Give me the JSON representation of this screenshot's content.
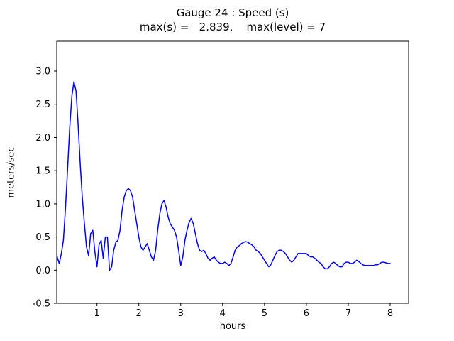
{
  "chart_data": {
    "type": "line",
    "title": "Gauge 24 : Speed (s)",
    "subtitle": "max(s) =   2.839,    max(level) = 7",
    "max_s": 2.839,
    "max_level": 7,
    "xlabel": "hours",
    "ylabel": "meters/sec",
    "xlim": [
      0.04,
      8.44
    ],
    "ylim": [
      -0.5,
      3.45
    ],
    "xticks": [
      1,
      2,
      3,
      4,
      5,
      6,
      7,
      8
    ],
    "yticks": [
      -0.5,
      0.0,
      0.5,
      1.0,
      1.5,
      2.0,
      2.5,
      3.0
    ],
    "grid": false,
    "legend": false,
    "line_color": "#0000ff",
    "line_width": 1.5,
    "series": [
      {
        "name": "Speed (s)",
        "x": [
          0.05,
          0.1,
          0.15,
          0.2,
          0.25,
          0.3,
          0.35,
          0.4,
          0.45,
          0.5,
          0.55,
          0.6,
          0.65,
          0.7,
          0.75,
          0.8,
          0.85,
          0.9,
          0.95,
          1.0,
          1.05,
          1.1,
          1.15,
          1.2,
          1.25,
          1.3,
          1.35,
          1.4,
          1.45,
          1.5,
          1.55,
          1.6,
          1.65,
          1.7,
          1.75,
          1.8,
          1.85,
          1.9,
          1.95,
          2.0,
          2.05,
          2.1,
          2.15,
          2.2,
          2.25,
          2.3,
          2.35,
          2.4,
          2.45,
          2.5,
          2.55,
          2.6,
          2.65,
          2.7,
          2.75,
          2.8,
          2.85,
          2.9,
          2.95,
          3.0,
          3.05,
          3.1,
          3.15,
          3.2,
          3.25,
          3.3,
          3.35,
          3.4,
          3.45,
          3.5,
          3.55,
          3.6,
          3.65,
          3.7,
          3.75,
          3.8,
          3.85,
          3.9,
          3.95,
          4.0,
          4.05,
          4.1,
          4.15,
          4.2,
          4.25,
          4.3,
          4.35,
          4.4,
          4.45,
          4.5,
          4.55,
          4.6,
          4.65,
          4.7,
          4.75,
          4.8,
          4.85,
          4.9,
          4.95,
          5.0,
          5.05,
          5.1,
          5.15,
          5.2,
          5.25,
          5.3,
          5.35,
          5.4,
          5.45,
          5.5,
          5.55,
          5.6,
          5.65,
          5.7,
          5.75,
          5.8,
          5.85,
          5.9,
          5.95,
          6.0,
          6.05,
          6.1,
          6.15,
          6.2,
          6.25,
          6.3,
          6.35,
          6.4,
          6.45,
          6.5,
          6.55,
          6.6,
          6.65,
          6.7,
          6.75,
          6.8,
          6.85,
          6.9,
          6.95,
          7.0,
          7.05,
          7.1,
          7.15,
          7.2,
          7.25,
          7.3,
          7.35,
          7.4,
          7.45,
          7.5,
          7.55,
          7.6,
          7.65,
          7.7,
          7.75,
          7.8,
          7.85,
          7.9,
          7.95,
          8.0
        ],
        "y": [
          0.2,
          0.1,
          0.25,
          0.45,
          0.95,
          1.55,
          2.15,
          2.62,
          2.84,
          2.7,
          2.2,
          1.6,
          1.1,
          0.7,
          0.35,
          0.22,
          0.55,
          0.6,
          0.28,
          0.05,
          0.38,
          0.45,
          0.18,
          0.5,
          0.5,
          0.0,
          0.05,
          0.3,
          0.42,
          0.45,
          0.6,
          0.9,
          1.1,
          1.2,
          1.23,
          1.2,
          1.1,
          0.9,
          0.7,
          0.5,
          0.35,
          0.3,
          0.35,
          0.4,
          0.3,
          0.2,
          0.15,
          0.3,
          0.6,
          0.85,
          1.0,
          1.05,
          0.95,
          0.8,
          0.7,
          0.65,
          0.6,
          0.5,
          0.3,
          0.07,
          0.2,
          0.45,
          0.6,
          0.72,
          0.78,
          0.7,
          0.55,
          0.4,
          0.3,
          0.28,
          0.3,
          0.25,
          0.18,
          0.15,
          0.18,
          0.2,
          0.15,
          0.12,
          0.1,
          0.1,
          0.12,
          0.1,
          0.07,
          0.1,
          0.2,
          0.3,
          0.35,
          0.37,
          0.4,
          0.42,
          0.43,
          0.42,
          0.4,
          0.38,
          0.35,
          0.3,
          0.28,
          0.25,
          0.2,
          0.15,
          0.1,
          0.05,
          0.08,
          0.15,
          0.22,
          0.28,
          0.3,
          0.3,
          0.28,
          0.25,
          0.2,
          0.15,
          0.12,
          0.15,
          0.2,
          0.25,
          0.25,
          0.25,
          0.25,
          0.25,
          0.22,
          0.2,
          0.2,
          0.18,
          0.15,
          0.12,
          0.1,
          0.05,
          0.02,
          0.02,
          0.05,
          0.1,
          0.12,
          0.1,
          0.07,
          0.05,
          0.05,
          0.1,
          0.12,
          0.12,
          0.1,
          0.1,
          0.12,
          0.15,
          0.13,
          0.1,
          0.08,
          0.07,
          0.07,
          0.07,
          0.07,
          0.07,
          0.08,
          0.08,
          0.1,
          0.12,
          0.12,
          0.11,
          0.1,
          0.1
        ]
      }
    ]
  }
}
